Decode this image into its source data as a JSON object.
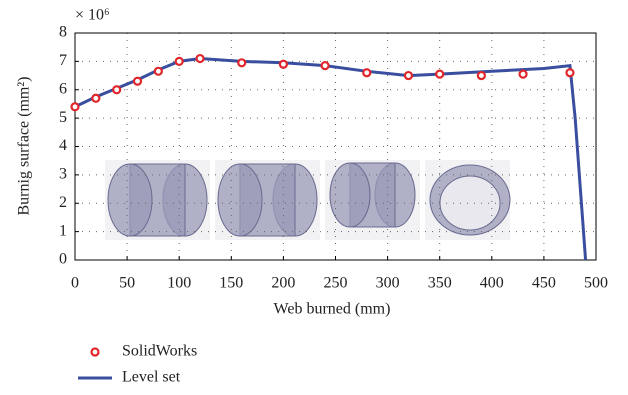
{
  "chart_data": {
    "type": "line",
    "multiplier": "× 10⁶",
    "x_label": "Web burned (mm)",
    "y_label": "Burnig surface (mm²)",
    "xlim": [
      0,
      500
    ],
    "xticks": [
      0,
      50,
      100,
      150,
      200,
      250,
      300,
      350,
      400,
      450,
      500
    ],
    "ylim": [
      0,
      8
    ],
    "yticks": [
      0,
      1,
      2,
      3,
      4,
      5,
      6,
      7,
      8
    ],
    "grid": true,
    "series": [
      {
        "name": "SolidWorks",
        "type": "scatter",
        "color": "#e0262b",
        "x": [
          0,
          20,
          40,
          60,
          80,
          100,
          120,
          160,
          200,
          240,
          280,
          320,
          350,
          390,
          430,
          475
        ],
        "values": [
          5.4,
          5.7,
          6.0,
          6.3,
          6.65,
          7.0,
          7.1,
          6.95,
          6.9,
          6.85,
          6.6,
          6.5,
          6.55,
          6.5,
          6.55,
          6.6
        ]
      },
      {
        "name": "Level set",
        "type": "line",
        "color": "#3a4ea0",
        "x": [
          0,
          20,
          40,
          60,
          80,
          100,
          120,
          160,
          200,
          240,
          280,
          320,
          350,
          400,
          450,
          475,
          480,
          490
        ],
        "values": [
          5.4,
          5.75,
          6.05,
          6.35,
          6.7,
          7.0,
          7.1,
          7.0,
          6.95,
          6.85,
          6.65,
          6.5,
          6.55,
          6.65,
          6.75,
          6.85,
          5.0,
          0
        ]
      }
    ]
  }
}
